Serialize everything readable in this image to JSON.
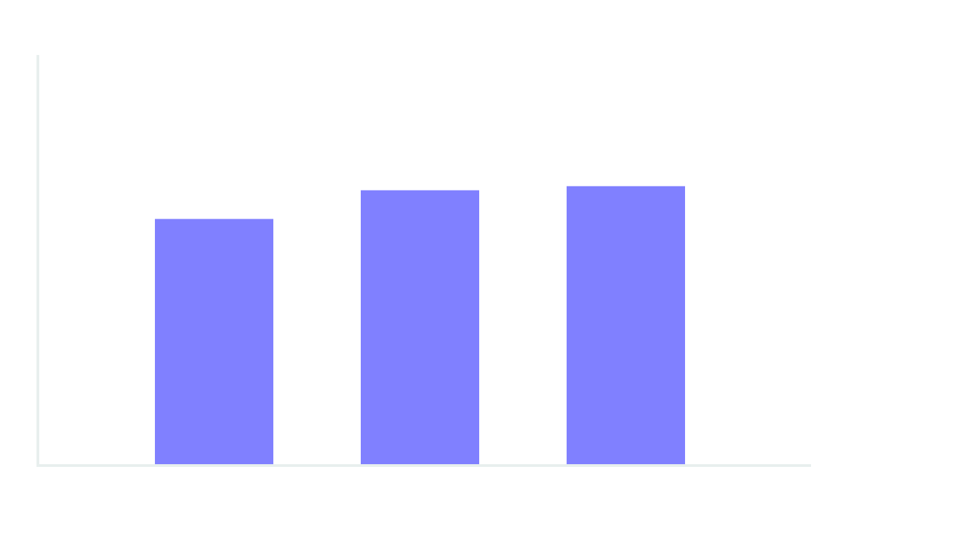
{
  "chart_data": {
    "type": "bar",
    "categories": [
      "",
      "",
      ""
    ],
    "values": [
      60,
      67,
      68
    ],
    "title": "",
    "xlabel": "",
    "ylabel": "",
    "ylim": [
      0,
      100
    ],
    "grid": false,
    "legend": "none",
    "colors": {
      "bar": "#8080ff",
      "axis": "#e8efee",
      "background": "#ffffff"
    }
  }
}
